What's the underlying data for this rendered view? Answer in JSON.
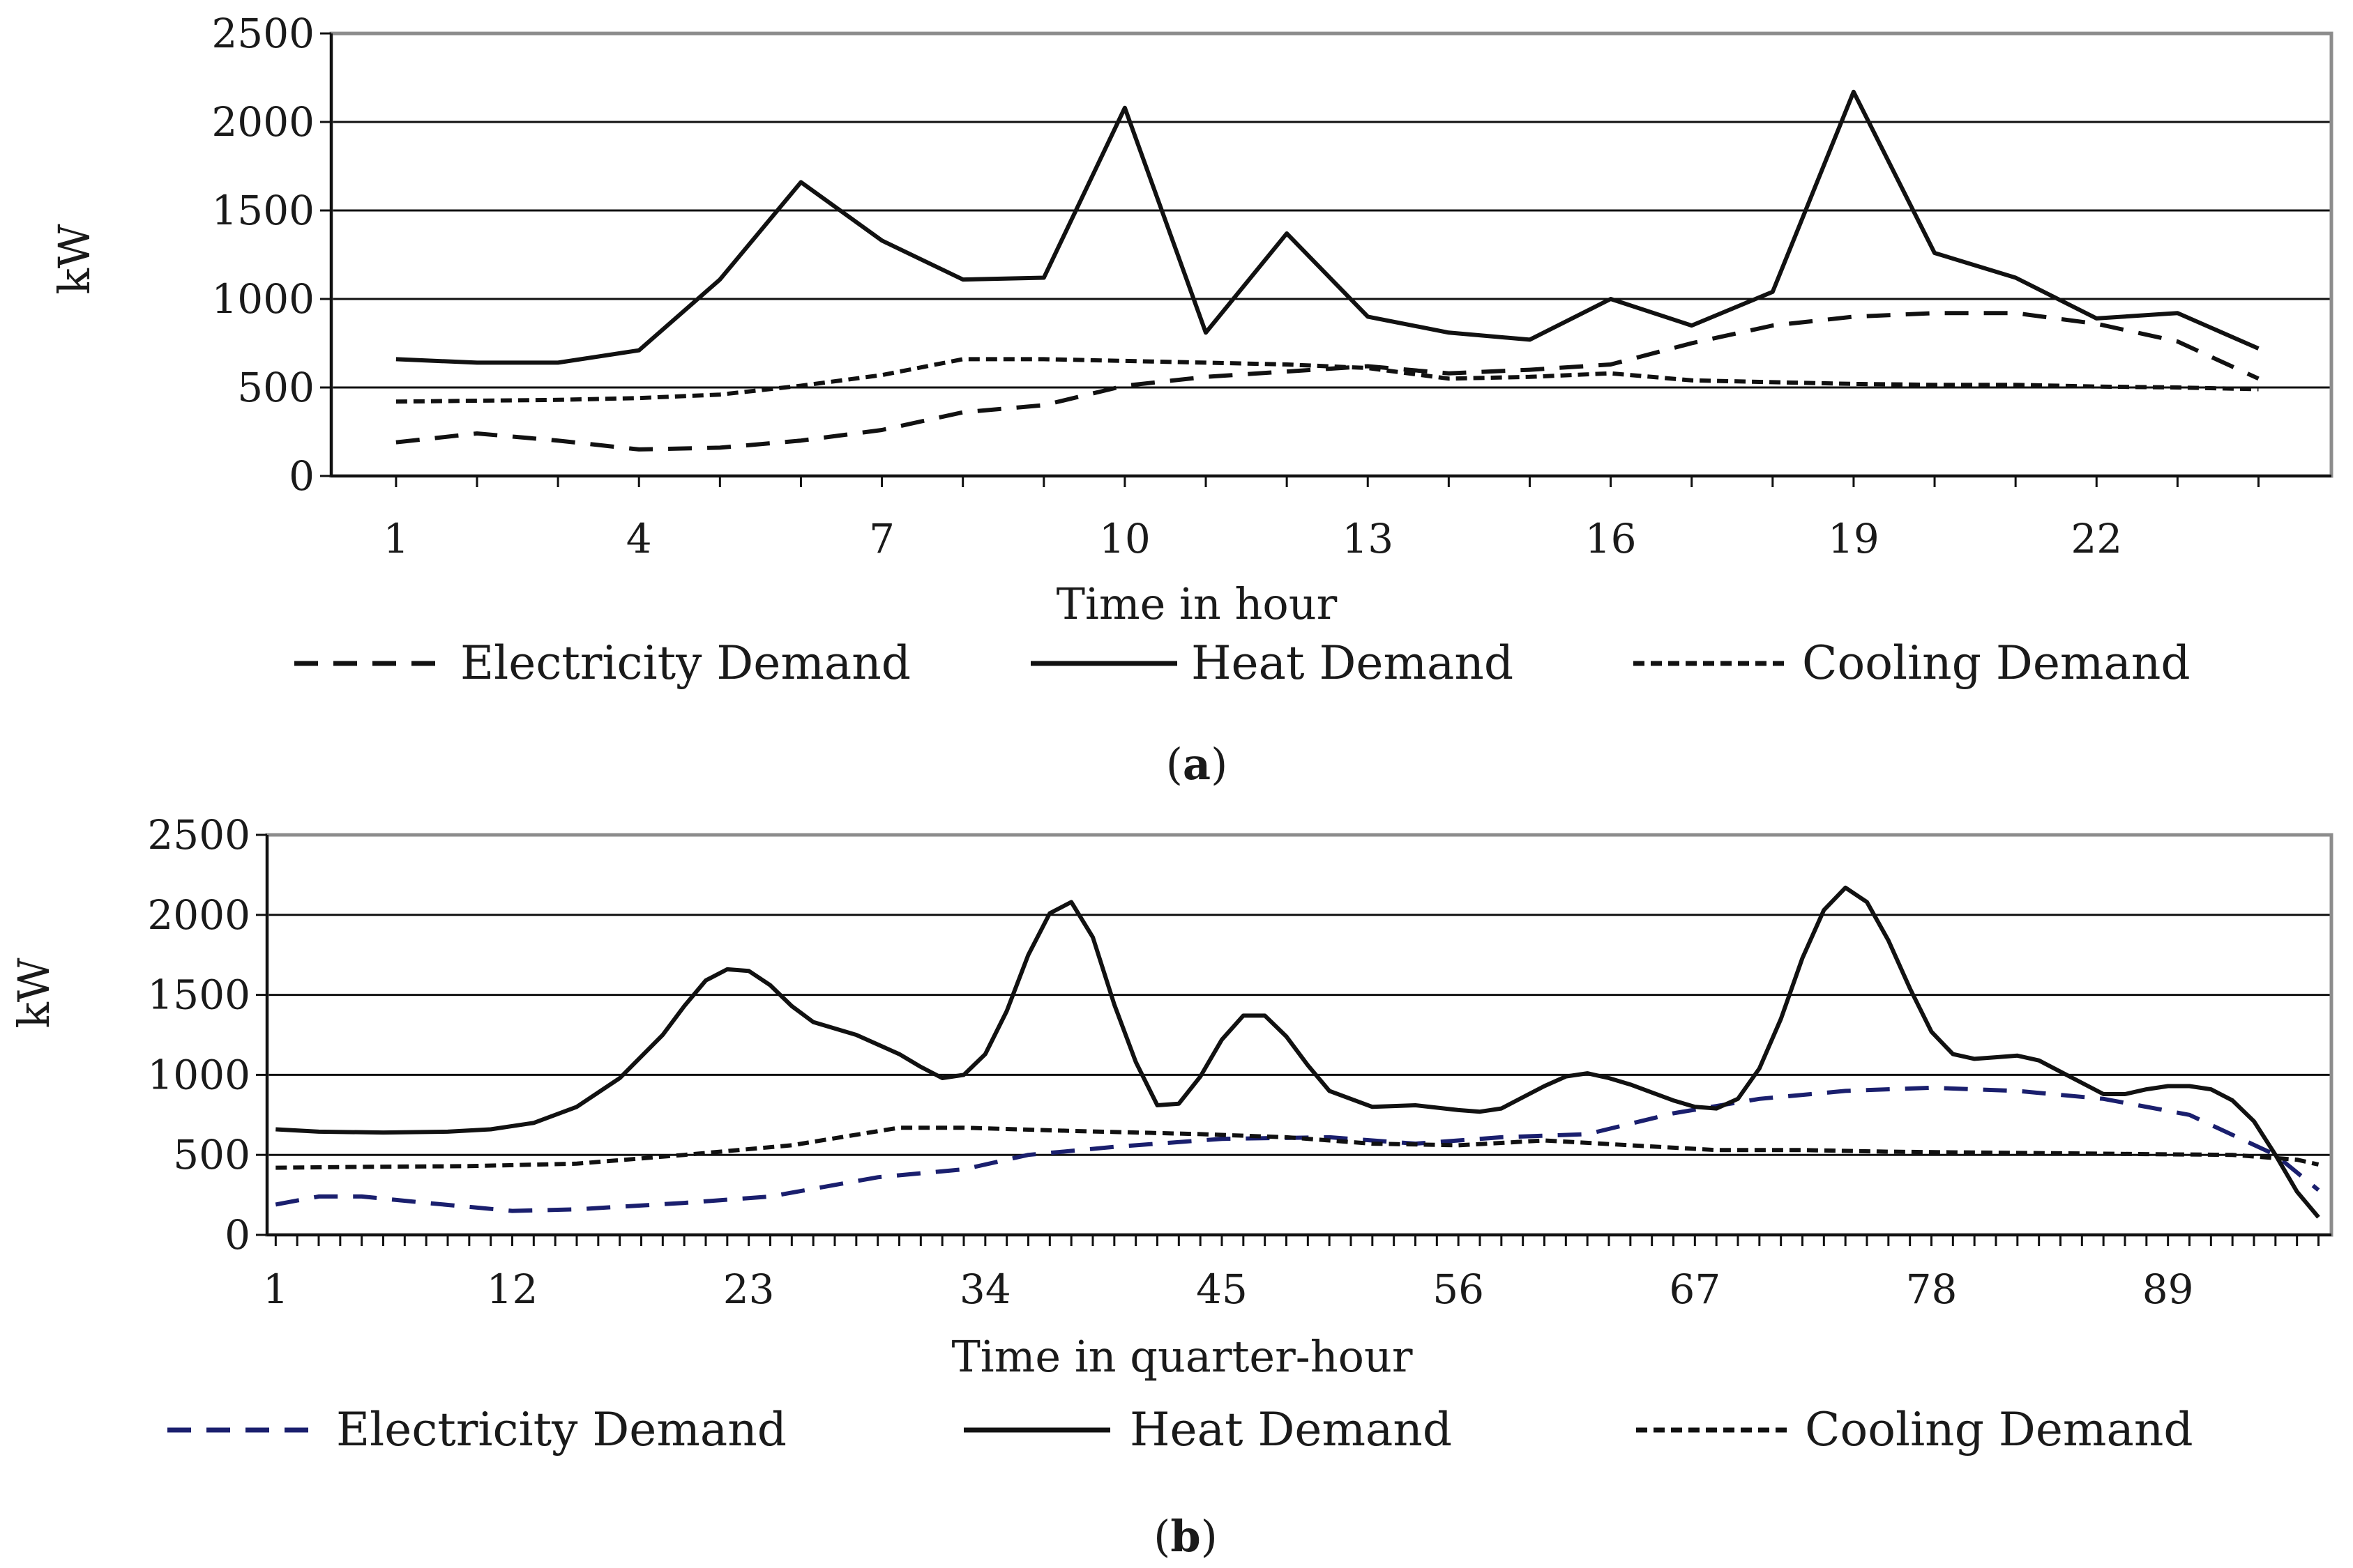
{
  "chart_data": [
    {
      "type": "line",
      "panel_label": "a",
      "xlabel": "Time in hour",
      "ylabel": "kW",
      "ylim": [
        0,
        2500
      ],
      "yticks": [
        0,
        500,
        1000,
        1500,
        2000,
        2500
      ],
      "xlim": [
        0.2,
        24.9
      ],
      "xtick_values": [
        1,
        4,
        7,
        10,
        13,
        16,
        19,
        22
      ],
      "grid": true,
      "legend_position": "bottom",
      "x": [
        1,
        2,
        3,
        4,
        5,
        6,
        7,
        8,
        9,
        10,
        11,
        12,
        13,
        14,
        15,
        16,
        17,
        18,
        19,
        20,
        21,
        22,
        23,
        24
      ],
      "series": [
        {
          "name": "Electricity Demand",
          "style": "dashed",
          "color": "#111111",
          "values": [
            190,
            240,
            200,
            150,
            160,
            200,
            260,
            360,
            400,
            510,
            560,
            590,
            620,
            580,
            600,
            630,
            750,
            850,
            900,
            920,
            920,
            860,
            760,
            550
          ]
        },
        {
          "name": "Heat Demand",
          "style": "solid",
          "color": "#111111",
          "values": [
            660,
            640,
            640,
            710,
            1110,
            1660,
            1330,
            1110,
            1120,
            2080,
            810,
            1370,
            900,
            810,
            770,
            1000,
            850,
            1040,
            2170,
            1260,
            1120,
            890,
            920,
            720
          ]
        },
        {
          "name": "Cooling Demand",
          "style": "dotted",
          "color": "#111111",
          "values": [
            420,
            425,
            430,
            440,
            460,
            510,
            570,
            660,
            660,
            650,
            640,
            630,
            610,
            550,
            560,
            580,
            540,
            530,
            520,
            515,
            515,
            505,
            500,
            490
          ]
        }
      ]
    },
    {
      "type": "line",
      "panel_label": "b",
      "xlabel": "Time in quarter-hour",
      "ylabel": "kW",
      "ylim": [
        0,
        2500
      ],
      "yticks": [
        0,
        500,
        1000,
        1500,
        2000,
        2500
      ],
      "xlim": [
        0.6,
        96.6
      ],
      "xtick_values": [
        1,
        12,
        23,
        34,
        45,
        56,
        67,
        78,
        89
      ],
      "grid": true,
      "legend_position": "bottom",
      "series": [
        {
          "name": "Electricity Demand",
          "style": "dashed",
          "color": "#1a1f6e",
          "x": [
            1,
            3,
            5,
            8,
            12,
            15,
            20,
            24,
            29,
            33,
            36,
            40,
            45,
            50,
            54,
            58,
            62,
            66,
            70,
            74,
            78,
            82,
            86,
            90,
            94,
            96
          ],
          "values": [
            190,
            240,
            240,
            200,
            150,
            160,
            200,
            240,
            360,
            410,
            500,
            550,
            600,
            610,
            570,
            610,
            630,
            760,
            850,
            900,
            920,
            900,
            850,
            750,
            500,
            280
          ]
        },
        {
          "name": "Heat Demand",
          "style": "solid",
          "color": "#111111",
          "x": [
            1,
            3,
            6,
            9,
            11,
            13,
            15,
            17,
            19,
            20,
            21,
            22,
            23,
            24,
            25,
            26,
            28,
            30,
            31,
            32,
            33,
            34,
            35,
            36,
            37,
            38,
            39,
            40,
            41,
            42,
            43,
            44,
            45,
            46,
            47,
            48,
            49,
            50,
            52,
            54,
            56,
            57,
            58,
            59,
            60,
            61,
            62,
            63,
            64,
            65,
            66,
            67,
            68,
            69,
            70,
            71,
            72,
            73,
            74,
            75,
            76,
            77,
            78,
            79,
            80,
            81,
            82,
            83,
            84,
            85,
            86,
            87,
            88,
            89,
            90,
            91,
            92,
            93,
            94,
            95,
            96
          ],
          "values": [
            660,
            645,
            640,
            645,
            660,
            700,
            800,
            980,
            1250,
            1430,
            1590,
            1660,
            1650,
            1560,
            1430,
            1330,
            1250,
            1130,
            1050,
            980,
            1000,
            1130,
            1400,
            1750,
            2010,
            2080,
            1860,
            1440,
            1080,
            810,
            820,
            990,
            1220,
            1370,
            1370,
            1240,
            1060,
            900,
            800,
            810,
            780,
            770,
            790,
            860,
            930,
            990,
            1010,
            980,
            940,
            890,
            840,
            800,
            790,
            850,
            1040,
            1350,
            1730,
            2030,
            2170,
            2080,
            1840,
            1540,
            1270,
            1130,
            1100,
            1110,
            1120,
            1090,
            1020,
            950,
            880,
            880,
            910,
            930,
            930,
            910,
            840,
            710,
            500,
            270,
            110
          ]
        },
        {
          "name": "Cooling Demand",
          "style": "dotted",
          "color": "#111111",
          "x": [
            1,
            5,
            10,
            15,
            20,
            25,
            30,
            33,
            38,
            44,
            48,
            52,
            56,
            60,
            64,
            68,
            72,
            76,
            80,
            84,
            88,
            92,
            95,
            96
          ],
          "values": [
            420,
            425,
            430,
            445,
            500,
            560,
            670,
            670,
            650,
            630,
            610,
            570,
            560,
            590,
            560,
            530,
            530,
            520,
            515,
            510,
            505,
            500,
            470,
            440
          ]
        }
      ]
    }
  ]
}
